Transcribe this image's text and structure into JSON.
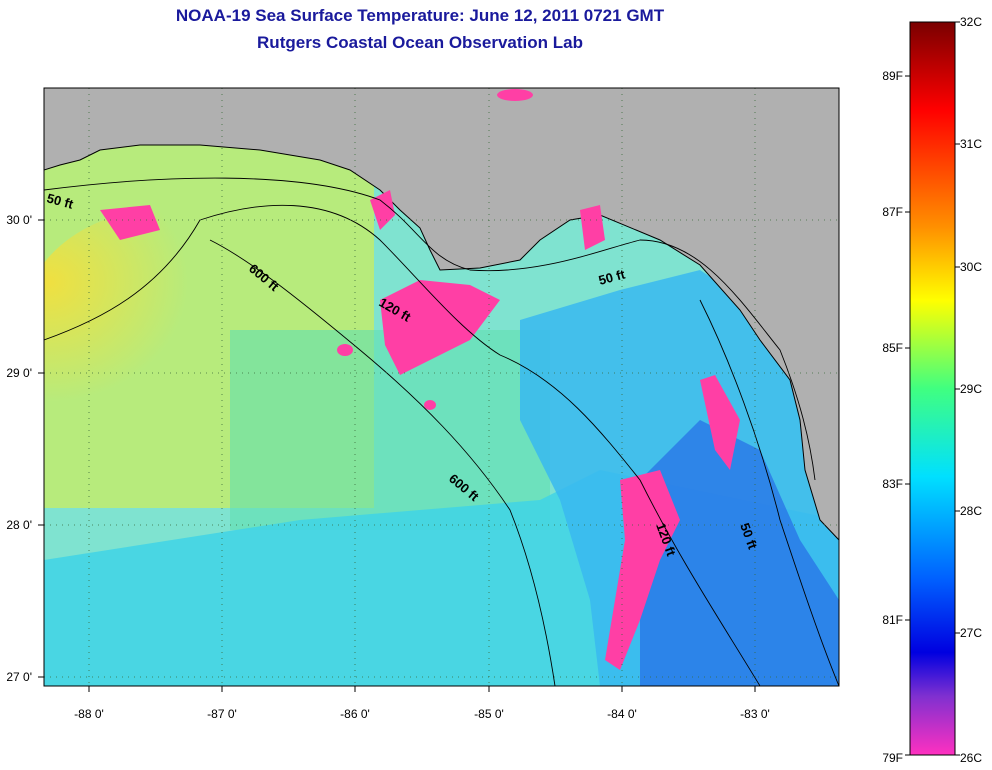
{
  "title": "NOAA-19 Sea Surface Temperature:  June 12, 2011 0721 GMT",
  "subtitle": "Rutgers Coastal Ocean Observation Lab",
  "map": {
    "lon_ticks": [
      "-88 0'",
      "-87 0'",
      "-86 0'",
      "-85 0'",
      "-84 0'",
      "-83 0'"
    ],
    "lat_ticks": [
      "30 0'",
      "29 0'",
      "28 0'",
      "27 0'"
    ],
    "contour_labels": [
      "50 ft",
      "600 ft",
      "120 ft",
      "50 ft",
      "600 ft",
      "120 ft",
      "50 ft"
    ],
    "land_color": "#b0b0b0",
    "cloud_color": "#ff3fa5"
  },
  "colorbar": {
    "celsius": [
      "32C",
      "31C",
      "30C",
      "29C",
      "28C",
      "27C",
      "26C"
    ],
    "fahrenheit": [
      "89F",
      "87F",
      "85F",
      "83F",
      "81F",
      "79F"
    ],
    "colors": [
      "#7a0000",
      "#ff0000",
      "#ff8000",
      "#ffff00",
      "#80ff40",
      "#00e5e5",
      "#0060ff",
      "#0000dd",
      "#ff30c0"
    ]
  }
}
